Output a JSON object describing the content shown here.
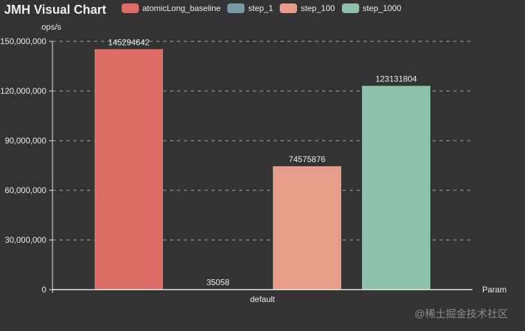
{
  "chart_data": {
    "type": "bar",
    "title": "JMH Visual Chart",
    "xlabel": "Param",
    "ylabel": "ops/s",
    "categories": [
      "default"
    ],
    "series": [
      {
        "name": "atomicLong_baseline",
        "values": [
          145294642
        ],
        "color": "#dd6b66"
      },
      {
        "name": "step_1",
        "values": [
          35058
        ],
        "color": "#759aa0"
      },
      {
        "name": "step_100",
        "values": [
          74575876
        ],
        "color": "#e69d87"
      },
      {
        "name": "step_1000",
        "values": [
          123131804
        ],
        "color": "#8dc1a9"
      }
    ],
    "ylim": [
      0,
      150000000
    ],
    "yticks": [
      "0",
      "30,000,000",
      "60,000,000",
      "90,000,000",
      "120,000,000",
      "150,000,000"
    ],
    "grid": true,
    "legend_position": "top"
  },
  "header": {
    "title": "JMH Visual Chart"
  },
  "axis": {
    "y_name": "ops/s",
    "x_name": "Param",
    "x_category": "default"
  },
  "legend": [
    {
      "label": "atomicLong_baseline",
      "color": "#dd6b66"
    },
    {
      "label": "step_1",
      "color": "#759aa0"
    },
    {
      "label": "step_100",
      "color": "#e69d87"
    },
    {
      "label": "step_1000",
      "color": "#8dc1a9"
    }
  ],
  "watermark": "@稀土掘金技术社区",
  "colors": {
    "background": "#333333",
    "text": "#eeeeee"
  }
}
